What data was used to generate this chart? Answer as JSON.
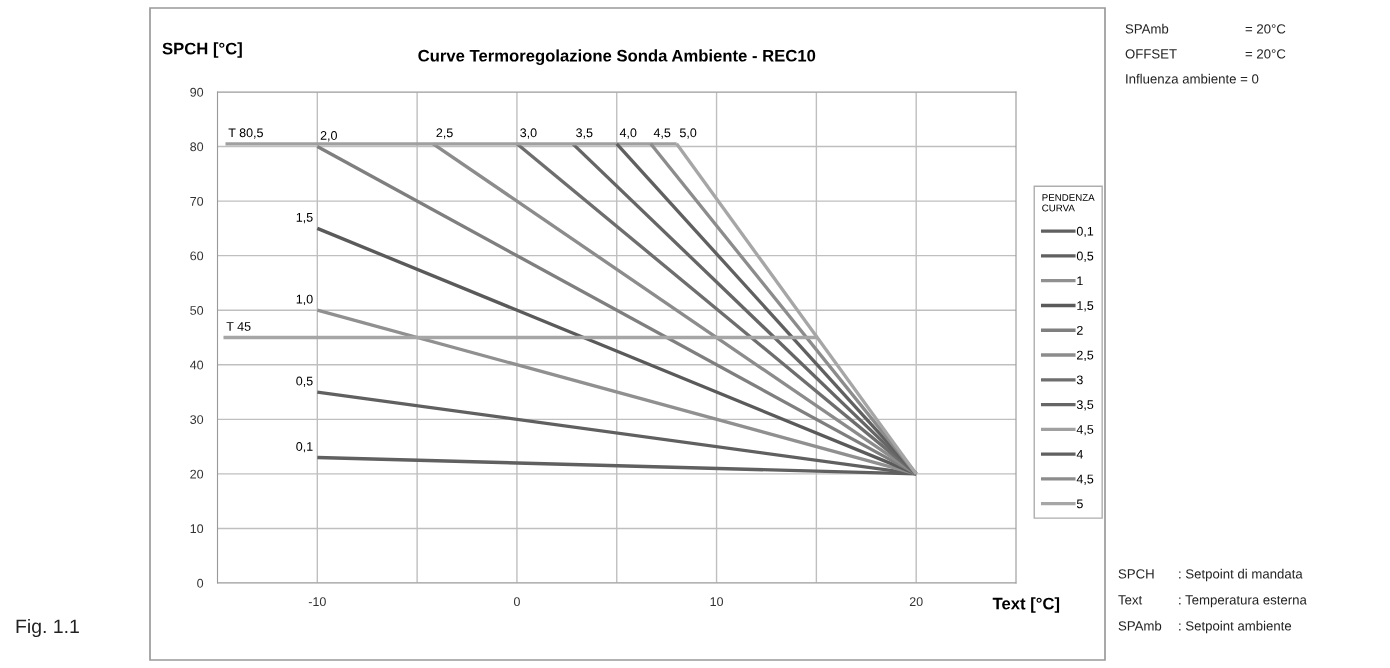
{
  "chart_data": {
    "type": "line",
    "title": "Curve Termoregolazione Sonda Ambiente - REC10",
    "xlabel": "Text [°C]",
    "ylabel": "SPCH [°C]",
    "legend_title": "PENDENZA CURVA",
    "xlim": [
      -15,
      25
    ],
    "xticks": [
      -10,
      {
        "value": -5,
        "label": null
      },
      0,
      {
        "value": 5,
        "label": null
      },
      10,
      {
        "value": 15,
        "label": null
      },
      20
    ],
    "ylim": [
      0,
      90
    ],
    "yticks": [
      0,
      10,
      20,
      30,
      40,
      50,
      60,
      70,
      80,
      90
    ],
    "grid": true,
    "legend": "right",
    "marker": "none",
    "line_style": "solid",
    "series": [
      {
        "name": "0,1",
        "color": "#606060",
        "x": [
          -10,
          20
        ],
        "values": [
          23,
          20
        ]
      },
      {
        "name": "0,5",
        "color": "#606060",
        "x": [
          -10,
          20
        ],
        "values": [
          35,
          20
        ]
      },
      {
        "name": "1",
        "color": "#909090",
        "x": [
          -10,
          20
        ],
        "values": [
          50,
          20
        ]
      },
      {
        "name": "1,5",
        "color": "#5a5a5a",
        "x": [
          -10,
          20
        ],
        "values": [
          65,
          20
        ]
      },
      {
        "name": "2",
        "color": "#7f7f7f",
        "x": [
          -10,
          20
        ],
        "values": [
          80,
          20
        ]
      },
      {
        "name": "2,5",
        "color": "#8c8c8c",
        "x": [
          -4.2,
          20
        ],
        "values": [
          80.5,
          20
        ]
      },
      {
        "name": "3",
        "color": "#6e6e6e",
        "x": [
          0,
          20
        ],
        "values": [
          80.5,
          20
        ]
      },
      {
        "name": "3,5",
        "color": "#666666",
        "x": [
          2.8,
          20
        ],
        "values": [
          80.5,
          20
        ]
      },
      {
        "name": "4,5",
        "color": "#a0a0a0",
        "x": [
          -14.6,
          8
        ],
        "values": [
          80.5,
          80.5
        ]
      },
      {
        "name": "4",
        "color": "#606060",
        "x": [
          5,
          20
        ],
        "values": [
          80.5,
          20
        ]
      },
      {
        "name": "4,5",
        "color": "#8c8c8c",
        "x": [
          6.7,
          20
        ],
        "values": [
          80.5,
          20
        ]
      },
      {
        "name": "5",
        "color": "#a6a6a6",
        "x": [
          8,
          20
        ],
        "values": [
          80.5,
          20
        ]
      },
      {
        "color": "#a6a6a6",
        "x": [
          -14.7,
          15
        ],
        "values": [
          45,
          45
        ]
      }
    ],
    "annotations": [
      {
        "text": "T 80,5",
        "x": -14.6,
        "y": 80.5
      },
      {
        "text": "2,0",
        "x": -10,
        "y": 80
      },
      {
        "text": "2,5",
        "x": -4.2,
        "y": 80.5
      },
      {
        "text": "3,0",
        "x": 0,
        "y": 80.5
      },
      {
        "text": "3,5",
        "x": 2.8,
        "y": 80.5
      },
      {
        "text": "4,0",
        "x": 5,
        "y": 80.5
      },
      {
        "text": "4,5",
        "x": 6.7,
        "y": 80.5
      },
      {
        "text": "5,0",
        "x": 8,
        "y": 80.5
      },
      {
        "text": "1,5",
        "x": -10,
        "y": 65
      },
      {
        "text": "1,0",
        "x": -10,
        "y": 50
      },
      {
        "text": "T 45",
        "x": -14.7,
        "y": 45
      },
      {
        "text": "0,5",
        "x": -10,
        "y": 35
      },
      {
        "text": "0,1",
        "x": -10,
        "y": 23
      },
      "SPAmb",
      "= 20°C",
      "OFFSET",
      "= 20°C",
      "Influenza ambiente = 0",
      "SPCH",
      ": Setpoint di mandata",
      "Text",
      ": Temperatura esterna",
      "SPAmb",
      ": Setpoint ambiente",
      "Fig. 1.1"
    ]
  }
}
